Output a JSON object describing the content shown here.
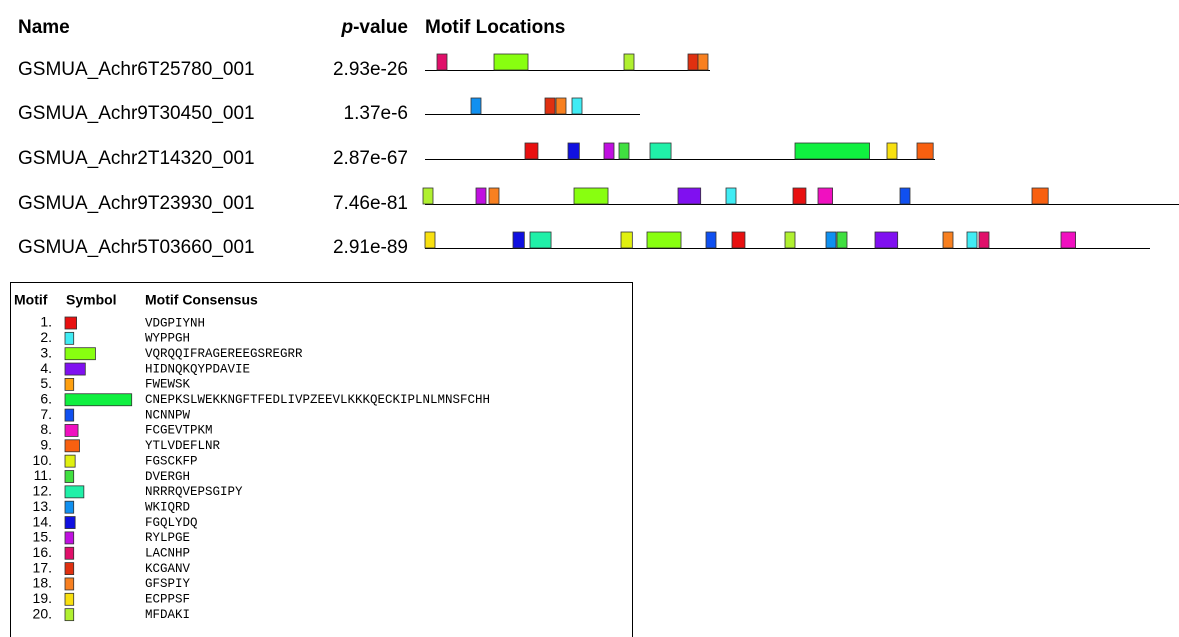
{
  "header": {
    "name": "Name",
    "p": "p",
    "value": "-value",
    "locations": "Motif Locations"
  },
  "sequences": [
    {
      "name": "GSMUA_Achr6T25780_001",
      "pvalue": "2.93e-26"
    },
    {
      "name": "GSMUA_Achr9T30450_001",
      "pvalue": "1.37e-6"
    },
    {
      "name": "GSMUA_Achr2T14320_001",
      "pvalue": "2.87e-67"
    },
    {
      "name": "GSMUA_Achr9T23930_001",
      "pvalue": "7.46e-81"
    },
    {
      "name": "GSMUA_Achr5T03660_001",
      "pvalue": "2.91e-89"
    }
  ],
  "legend": {
    "motif": "Motif",
    "symbol": "Symbol",
    "consensus": "Motif Consensus",
    "motifs": [
      {
        "number": "1.",
        "consensus": "VDGPIYNH",
        "color": "#e81010"
      },
      {
        "number": "2.",
        "consensus": "WYPPGH",
        "color": "#40ecf4"
      },
      {
        "number": "3.",
        "consensus": "VQRQQIFRAGEREEGSREGRR",
        "color": "#88ff10"
      },
      {
        "number": "4.",
        "consensus": "HIDNQKQYPDAVIE",
        "color": "#8010f0"
      },
      {
        "number": "5.",
        "consensus": "FWEWSK",
        "color": "#ffa010"
      },
      {
        "number": "6.",
        "consensus": "CNEPKSLWEKKNGFTFEDLIVPZEEVLKKKQECKIPLNLMNSFCHH",
        "color": "#10f040"
      },
      {
        "number": "7.",
        "consensus": "NCNNPW",
        "color": "#1050f0"
      },
      {
        "number": "8.",
        "consensus": "FCGEVTPKM",
        "color": "#f010c0"
      },
      {
        "number": "9.",
        "consensus": "YTLVDEFLNR",
        "color": "#f86010"
      },
      {
        "number": "10.",
        "consensus": "FGSCKFP",
        "color": "#e0f010"
      },
      {
        "number": "11.",
        "consensus": "DVERGH",
        "color": "#40e040"
      },
      {
        "number": "12.",
        "consensus": "NRRRQVEPSGIPY",
        "color": "#20f0a8"
      },
      {
        "number": "13.",
        "consensus": "WKIQRD",
        "color": "#1090f0"
      },
      {
        "number": "14.",
        "consensus": "FGQLYDQ",
        "color": "#1010e0"
      },
      {
        "number": "15.",
        "consensus": "RYLPGE",
        "color": "#c010e0"
      },
      {
        "number": "16.",
        "consensus": "LACNHP",
        "color": "#e0106a"
      },
      {
        "number": "17.",
        "consensus": "KCGANV",
        "color": "#e03010"
      },
      {
        "number": "18.",
        "consensus": "GFSPIY",
        "color": "#f88020"
      },
      {
        "number": "19.",
        "consensus": "ECPPSF",
        "color": "#f8e010"
      },
      {
        "number": "20.",
        "consensus": "MFDAKI",
        "color": "#b0f030"
      }
    ]
  }
}
